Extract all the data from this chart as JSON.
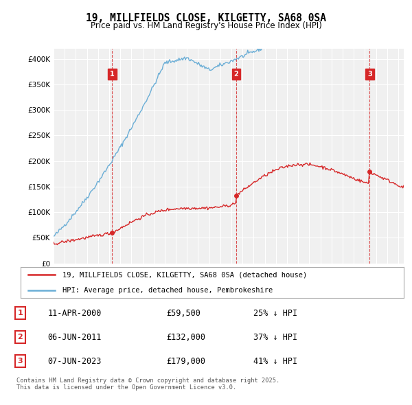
{
  "title": "19, MILLFIELDS CLOSE, KILGETTY, SA68 0SA",
  "subtitle": "Price paid vs. HM Land Registry's House Price Index (HPI)",
  "hpi_label": "HPI: Average price, detached house, Pembrokeshire",
  "price_label": "19, MILLFIELDS CLOSE, KILGETTY, SA68 0SA (detached house)",
  "hpi_color": "#6baed6",
  "price_color": "#d62728",
  "sale_color": "#d62728",
  "vline_color": "#d62728",
  "background_color": "#f0f0f0",
  "ylim": [
    0,
    420000
  ],
  "yticks": [
    0,
    50000,
    100000,
    150000,
    200000,
    250000,
    300000,
    350000,
    400000
  ],
  "sales": [
    {
      "date_num": 2000.27,
      "price": 59500,
      "label": "1"
    },
    {
      "date_num": 2011.43,
      "price": 132000,
      "label": "2"
    },
    {
      "date_num": 2023.43,
      "price": 179000,
      "label": "3"
    }
  ],
  "table_rows": [
    {
      "num": "1",
      "date": "11-APR-2000",
      "price": "£59,500",
      "pct": "25% ↓ HPI"
    },
    {
      "num": "2",
      "date": "06-JUN-2011",
      "price": "£132,000",
      "pct": "37% ↓ HPI"
    },
    {
      "num": "3",
      "date": "07-JUN-2023",
      "price": "£179,000",
      "pct": "41% ↓ HPI"
    }
  ],
  "footer": "Contains HM Land Registry data © Crown copyright and database right 2025.\nThis data is licensed under the Open Government Licence v3.0."
}
